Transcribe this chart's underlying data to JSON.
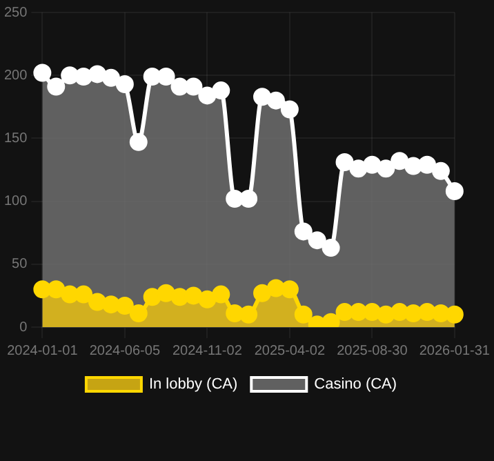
{
  "chart_data": {
    "type": "area",
    "categories": [
      "2024-01-01",
      null,
      null,
      null,
      null,
      null,
      "2024-06-05",
      null,
      null,
      null,
      null,
      null,
      "2024-11-02",
      null,
      null,
      null,
      null,
      null,
      "2025-04-02",
      null,
      null,
      null,
      null,
      null,
      "2025-08-30",
      null,
      null,
      null,
      null,
      null,
      "2026-01-31"
    ],
    "series": [
      {
        "name": "In lobby (CA)",
        "color": "#ffd700",
        "values": [
          30,
          30,
          26,
          26,
          20,
          18,
          17,
          11,
          24,
          27,
          24,
          25,
          22,
          26,
          11,
          10,
          27,
          31,
          30,
          10,
          2,
          4,
          12,
          12,
          12,
          10,
          12,
          11,
          12,
          11,
          10
        ]
      },
      {
        "name": "Casino (CA)",
        "color": "#ffffff",
        "values": [
          202,
          191,
          200,
          199,
          201,
          198,
          193,
          147,
          199,
          199,
          191,
          191,
          184,
          188,
          102,
          102,
          183,
          180,
          173,
          76,
          69,
          63,
          131,
          126,
          129,
          126,
          132,
          128,
          129,
          124,
          108
        ]
      }
    ],
    "ylim": [
      0,
      250
    ],
    "yticks": [
      0,
      50,
      100,
      150,
      200,
      250
    ],
    "grid": true,
    "legend": "bottom",
    "marker": "circle"
  }
}
